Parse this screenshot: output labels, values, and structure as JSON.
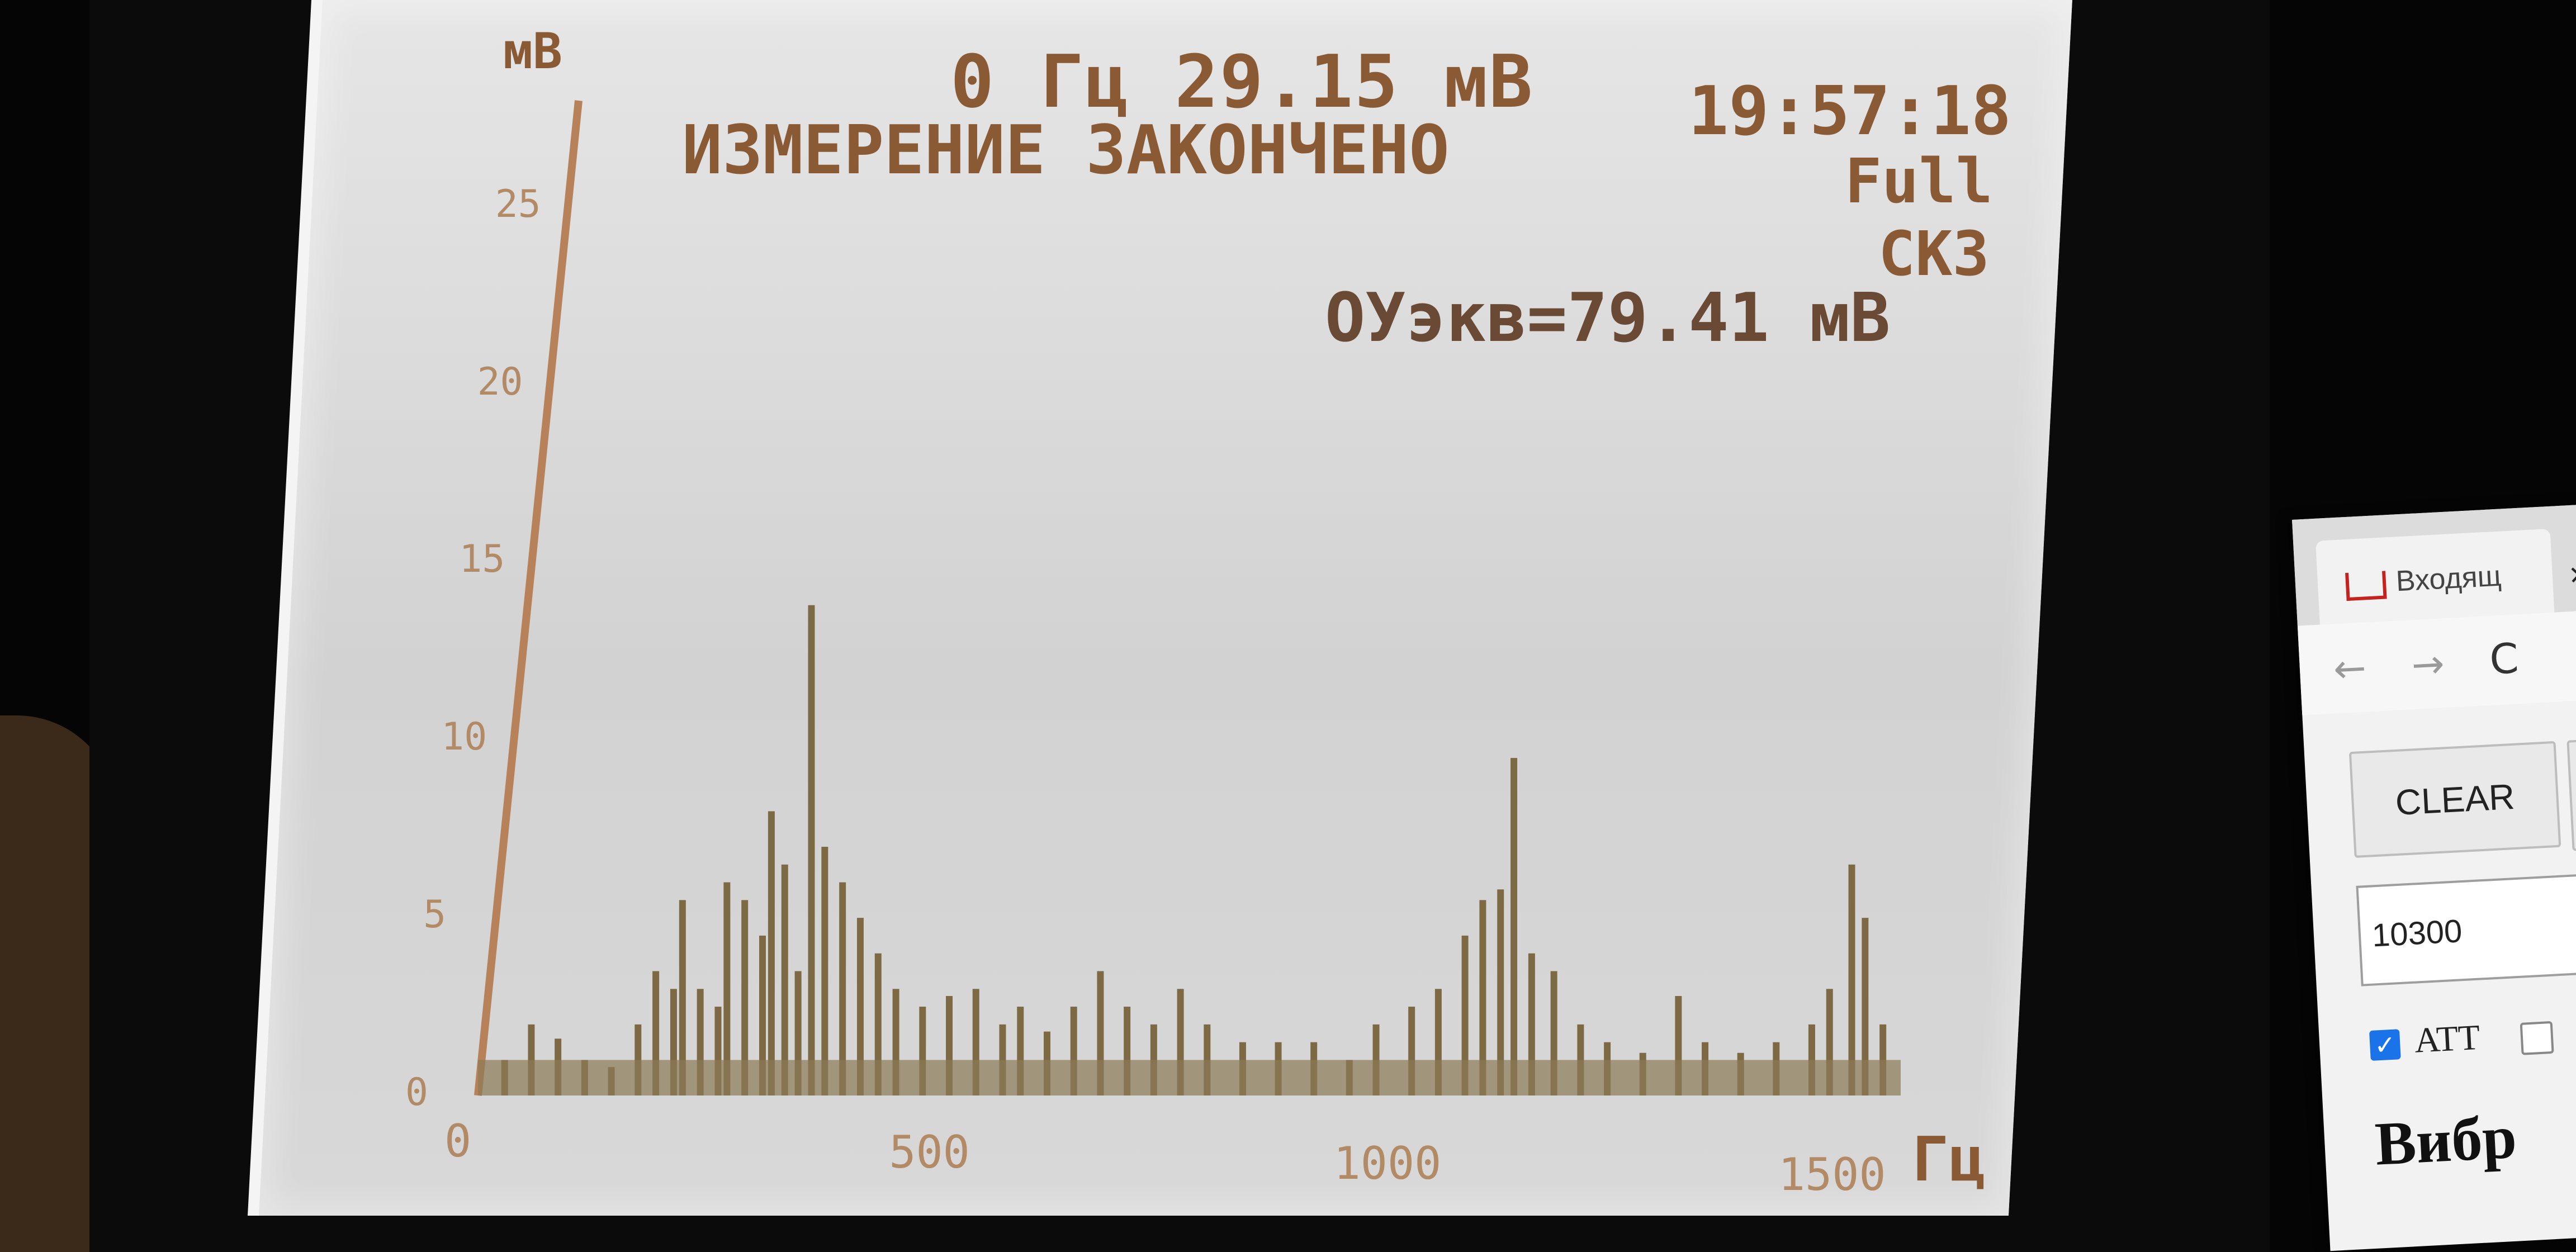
{
  "device_screen": {
    "unit_label": "мВ",
    "freq_reading": "0 Гц 29.15 мВ",
    "status": "ИЗМЕРЕНИЕ ЗАКОНЧЕНО",
    "time": "19:57:18",
    "mode": "Full",
    "measure_type": "СКЗ",
    "equivalent": "ОУэкв=79.41 мВ",
    "x_unit": "Гц"
  },
  "chart_data": {
    "type": "bar",
    "xlabel": "Гц",
    "ylabel": "мВ",
    "xlim": [
      0,
      1600
    ],
    "ylim": [
      0,
      28
    ],
    "x_ticks": [
      "0",
      "500",
      "1000",
      "1500"
    ],
    "y_ticks": [
      "0",
      "5",
      "10",
      "15",
      "20",
      "25"
    ],
    "peaks": [
      {
        "x": 30,
        "y": 1.0
      },
      {
        "x": 60,
        "y": 2.0
      },
      {
        "x": 90,
        "y": 1.6
      },
      {
        "x": 120,
        "y": 1.0
      },
      {
        "x": 150,
        "y": 0.8
      },
      {
        "x": 180,
        "y": 2.0
      },
      {
        "x": 200,
        "y": 3.5
      },
      {
        "x": 220,
        "y": 3.0
      },
      {
        "x": 230,
        "y": 5.5
      },
      {
        "x": 250,
        "y": 3.0
      },
      {
        "x": 270,
        "y": 2.5
      },
      {
        "x": 280,
        "y": 6.0
      },
      {
        "x": 300,
        "y": 5.5
      },
      {
        "x": 320,
        "y": 4.5
      },
      {
        "x": 330,
        "y": 8.0
      },
      {
        "x": 345,
        "y": 6.5
      },
      {
        "x": 360,
        "y": 3.5
      },
      {
        "x": 375,
        "y": 13.8
      },
      {
        "x": 390,
        "y": 7.0
      },
      {
        "x": 410,
        "y": 6.0
      },
      {
        "x": 430,
        "y": 5.0
      },
      {
        "x": 450,
        "y": 4.0
      },
      {
        "x": 470,
        "y": 3.0
      },
      {
        "x": 500,
        "y": 2.5
      },
      {
        "x": 530,
        "y": 2.8
      },
      {
        "x": 560,
        "y": 3.0
      },
      {
        "x": 590,
        "y": 2.0
      },
      {
        "x": 610,
        "y": 2.5
      },
      {
        "x": 640,
        "y": 1.8
      },
      {
        "x": 670,
        "y": 2.5
      },
      {
        "x": 700,
        "y": 3.5
      },
      {
        "x": 730,
        "y": 2.5
      },
      {
        "x": 760,
        "y": 2.0
      },
      {
        "x": 790,
        "y": 3.0
      },
      {
        "x": 820,
        "y": 2.0
      },
      {
        "x": 860,
        "y": 1.5
      },
      {
        "x": 900,
        "y": 1.5
      },
      {
        "x": 940,
        "y": 1.5
      },
      {
        "x": 980,
        "y": 1.0
      },
      {
        "x": 1010,
        "y": 2.0
      },
      {
        "x": 1050,
        "y": 2.5
      },
      {
        "x": 1080,
        "y": 3.0
      },
      {
        "x": 1110,
        "y": 4.5
      },
      {
        "x": 1130,
        "y": 5.5
      },
      {
        "x": 1150,
        "y": 5.8
      },
      {
        "x": 1165,
        "y": 9.5
      },
      {
        "x": 1185,
        "y": 4.0
      },
      {
        "x": 1210,
        "y": 3.5
      },
      {
        "x": 1240,
        "y": 2.0
      },
      {
        "x": 1270,
        "y": 1.5
      },
      {
        "x": 1310,
        "y": 1.2
      },
      {
        "x": 1350,
        "y": 2.8
      },
      {
        "x": 1380,
        "y": 1.5
      },
      {
        "x": 1420,
        "y": 1.2
      },
      {
        "x": 1460,
        "y": 1.5
      },
      {
        "x": 1500,
        "y": 2.0
      },
      {
        "x": 1520,
        "y": 3.0
      },
      {
        "x": 1545,
        "y": 6.5
      },
      {
        "x": 1560,
        "y": 5.0
      },
      {
        "x": 1580,
        "y": 2.0
      }
    ]
  },
  "browser": {
    "tab_title": "Входящ",
    "tab_close": "×",
    "nav_back": "←",
    "nav_forward": "→",
    "nav_reload": "C",
    "clear_label": "CLEAR",
    "input_value": "10300",
    "att_label": "ATT",
    "heading": "Вибр"
  }
}
